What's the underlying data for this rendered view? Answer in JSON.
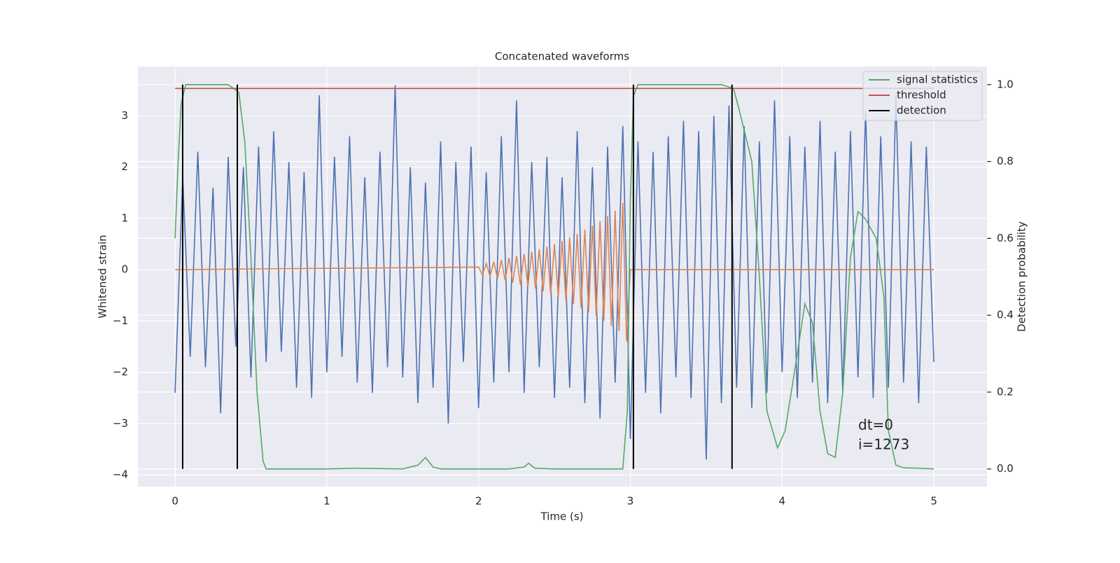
{
  "chart_data": {
    "type": "line",
    "title": "Concatenated waveforms",
    "xlabel": "Time (s)",
    "ylabel": "Whitened strain",
    "y2label": "Detection probability",
    "xlim": [
      -0.245,
      5.35
    ],
    "ylim": [
      -4.23,
      3.96
    ],
    "y2lim": [
      -0.046,
      1.047
    ],
    "xticks": [
      0,
      1,
      2,
      3,
      4,
      5
    ],
    "yticks": [
      {
        "value": -4,
        "label": "−4"
      },
      {
        "value": -3,
        "label": "−3"
      },
      {
        "value": -2,
        "label": "−2"
      },
      {
        "value": -1,
        "label": "−1"
      },
      0,
      1,
      2,
      3
    ],
    "y2ticks": [
      {
        "value": 0,
        "label": "0.0"
      },
      0.2,
      0.4,
      0.6,
      0.8,
      {
        "value": 1,
        "label": "1.0"
      }
    ],
    "grid": true,
    "legend": "upper right",
    "series": [
      {
        "color": "#4c72b0",
        "x": [
          0,
          0.05,
          0.1,
          0.15,
          0.2,
          0.25,
          0.3,
          0.35,
          0.4,
          0.45,
          0.5,
          0.55,
          0.6,
          0.65,
          0.7,
          0.75,
          0.8,
          0.85,
          0.9,
          0.95,
          1,
          1.05,
          1.1,
          1.15,
          1.2,
          1.25,
          1.3,
          1.35,
          1.4,
          1.45,
          1.5,
          1.55,
          1.6,
          1.65,
          1.7,
          1.75,
          1.8,
          1.85,
          1.9,
          1.95,
          2,
          2.05,
          2.1,
          2.15,
          2.2,
          2.25,
          2.3,
          2.35,
          2.4,
          2.45,
          2.5,
          2.55,
          2.6,
          2.65,
          2.7,
          2.75,
          2.8,
          2.85,
          2.9,
          2.95,
          3,
          3.05,
          3.1,
          3.15,
          3.2,
          3.25,
          3.3,
          3.35,
          3.4,
          3.45,
          3.5,
          3.55,
          3.6,
          3.65,
          3.7,
          3.75,
          3.8,
          3.85,
          3.9,
          3.95,
          4,
          4.05,
          4.1,
          4.15,
          4.2,
          4.25,
          4.3,
          4.35,
          4.4,
          4.45,
          4.5,
          4.55,
          4.6,
          4.65,
          4.7,
          4.75,
          4.8,
          4.85,
          4.9,
          4.95,
          5
        ],
        "values": [
          -2.4,
          1.8,
          -1.7,
          2.3,
          -1.9,
          1.6,
          -2.8,
          2.2,
          -1.5,
          2.0,
          -2.1,
          2.4,
          -1.8,
          2.7,
          -1.6,
          2.1,
          -2.3,
          1.9,
          -2.5,
          3.4,
          -2.0,
          2.2,
          -1.7,
          2.6,
          -2.2,
          1.8,
          -2.4,
          2.3,
          -1.9,
          3.6,
          -2.1,
          2.0,
          -2.6,
          1.7,
          -2.3,
          2.5,
          -3.0,
          2.1,
          -1.8,
          2.4,
          -2.7,
          1.9,
          -2.2,
          2.6,
          -2.0,
          3.3,
          -2.4,
          2.1,
          -1.9,
          2.2,
          -2.5,
          1.8,
          -2.3,
          2.7,
          -2.6,
          2.0,
          -2.9,
          2.4,
          -2.2,
          2.8,
          -3.3,
          2.5,
          -2.4,
          2.3,
          -2.8,
          2.6,
          -2.1,
          2.9,
          -2.5,
          2.7,
          -3.7,
          3.0,
          -2.6,
          3.2,
          -2.3,
          2.8,
          -2.7,
          2.5,
          -2.4,
          3.3,
          -2.0,
          2.6,
          -2.5,
          2.4,
          -2.2,
          2.9,
          -2.6,
          2.3,
          -2.4,
          2.7,
          -2.1,
          3.1,
          -2.5,
          2.6,
          -2.3,
          3.4,
          -2.2,
          2.5,
          -2.6,
          2.4,
          -1.8
        ]
      },
      {
        "color": "#dd8452",
        "x": [
          0,
          2,
          2.025,
          2.05,
          2.075,
          2.1,
          2.125,
          2.15,
          2.175,
          2.2,
          2.225,
          2.25,
          2.275,
          2.3,
          2.325,
          2.35,
          2.375,
          2.4,
          2.425,
          2.45,
          2.475,
          2.5,
          2.525,
          2.55,
          2.575,
          2.6,
          2.625,
          2.65,
          2.675,
          2.7,
          2.725,
          2.75,
          2.775,
          2.8,
          2.825,
          2.85,
          2.875,
          2.9,
          2.925,
          2.95,
          2.975,
          3,
          5
        ],
        "values": [
          0,
          0.05,
          -0.1,
          0.12,
          -0.13,
          0.15,
          -0.17,
          0.19,
          -0.21,
          0.23,
          -0.25,
          0.27,
          -0.29,
          0.31,
          -0.33,
          0.35,
          -0.37,
          0.4,
          -0.42,
          0.45,
          -0.48,
          0.5,
          -0.53,
          0.56,
          -0.6,
          0.63,
          -0.67,
          0.7,
          -0.74,
          0.78,
          -0.82,
          0.86,
          -0.9,
          0.95,
          -1.0,
          1.05,
          -1.1,
          1.15,
          -1.2,
          1.3,
          -1.4,
          0,
          0
        ]
      },
      {
        "name": "signal statistics",
        "color": "#55a868",
        "axis": "y2",
        "x": [
          0,
          0.02,
          0.04,
          0.07,
          0.35,
          0.42,
          0.46,
          0.5,
          0.54,
          0.58,
          0.6,
          1,
          1.2,
          1.5,
          1.6,
          1.65,
          1.7,
          1.75,
          2.2,
          2.3,
          2.33,
          2.37,
          2.5,
          2.95,
          2.98,
          3,
          3.02,
          3.05,
          3.6,
          3.68,
          3.72,
          3.8,
          3.85,
          3.9,
          3.97,
          4.02,
          4.1,
          4.15,
          4.2,
          4.25,
          4.3,
          4.35,
          4.4,
          4.45,
          4.5,
          4.55,
          4.62,
          4.67,
          4.7,
          4.75,
          4.8,
          4.9,
          5
        ],
        "values": [
          0.6,
          0.8,
          0.95,
          1.0,
          1.0,
          0.98,
          0.85,
          0.55,
          0.2,
          0.02,
          0,
          0,
          0.002,
          0,
          0.01,
          0.03,
          0.005,
          0,
          0,
          0.005,
          0.015,
          0.002,
          0,
          0,
          0.15,
          0.7,
          0.97,
          1.0,
          1.0,
          0.99,
          0.93,
          0.8,
          0.5,
          0.15,
          0.055,
          0.1,
          0.3,
          0.43,
          0.38,
          0.15,
          0.04,
          0.03,
          0.2,
          0.55,
          0.67,
          0.65,
          0.6,
          0.45,
          0.1,
          0.01,
          0.003,
          0.002,
          0
        ]
      },
      {
        "name": "threshold",
        "color": "#c44e52",
        "axis": "y2",
        "x": [
          0,
          5
        ],
        "values": [
          0.99,
          0.99
        ]
      },
      {
        "name": "detection",
        "color": "#000000",
        "axis": "y2",
        "kind": "vlines",
        "x": [
          0.05,
          0.41,
          3.02,
          3.67
        ],
        "ymin": 0,
        "ymax": 1
      }
    ],
    "annotations": [
      "dt=0",
      "i=1273"
    ]
  }
}
